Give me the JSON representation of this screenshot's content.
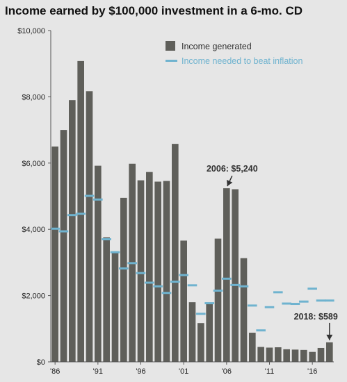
{
  "chart_data": {
    "type": "bar",
    "title": "Income earned by $100,000 investment in a 6-mo. CD",
    "xlabel": "",
    "ylabel": "",
    "ylim": [
      0,
      10000
    ],
    "yticks": [
      "$0",
      "$2,000",
      "$4,000",
      "$6,000",
      "$8,000",
      "$10,000"
    ],
    "ytick_values": [
      0,
      2000,
      4000,
      6000,
      8000,
      10000
    ],
    "categories": [
      1986,
      1987,
      1988,
      1989,
      1990,
      1991,
      1992,
      1993,
      1994,
      1995,
      1996,
      1997,
      1998,
      1999,
      2000,
      2001,
      2002,
      2003,
      2004,
      2005,
      2006,
      2007,
      2008,
      2009,
      2010,
      2011,
      2012,
      2013,
      2014,
      2015,
      2016,
      2017,
      2018
    ],
    "xtick_labels": [
      "'86",
      "'91",
      "'96",
      "'01",
      "'06",
      "'11",
      "'16"
    ],
    "xtick_years": [
      1986,
      1991,
      1996,
      2001,
      2006,
      2011,
      2016
    ],
    "grid": false,
    "legend_position": "top-right",
    "series": [
      {
        "name": "Income generated",
        "kind": "bar",
        "color": "#5f5f5a",
        "values": [
          6500,
          7000,
          7900,
          9080,
          8170,
          5920,
          3760,
          3310,
          4950,
          5980,
          5480,
          5730,
          5440,
          5460,
          6580,
          3660,
          1800,
          1170,
          1740,
          3720,
          5240,
          5210,
          3130,
          880,
          450,
          430,
          440,
          380,
          370,
          360,
          300,
          420,
          589
        ]
      },
      {
        "name": "Income needed to beat inflation",
        "kind": "dash",
        "color": "#6fb3cf",
        "values": [
          4020,
          3940,
          4430,
          4470,
          5010,
          4900,
          3700,
          3310,
          2820,
          2980,
          2680,
          2390,
          2280,
          2080,
          2420,
          2620,
          2310,
          1450,
          1770,
          2150,
          2510,
          2320,
          2280,
          1700,
          950,
          1650,
          2100,
          1760,
          1750,
          1820,
          2210,
          1850,
          1850
        ]
      }
    ],
    "annotations": [
      {
        "text": "2006: $5,240",
        "year": 2006,
        "value": 5240
      },
      {
        "text": "2018: $589",
        "year": 2018,
        "value": 589
      }
    ]
  }
}
